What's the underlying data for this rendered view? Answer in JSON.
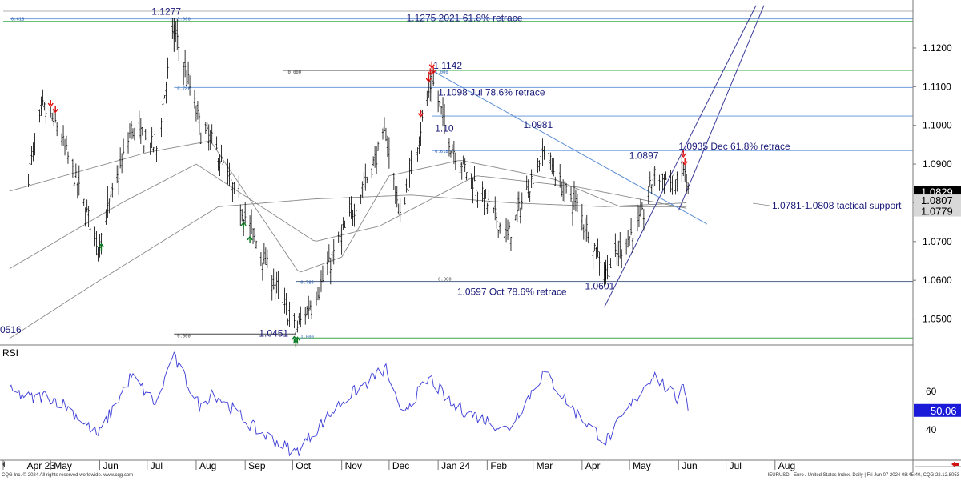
{
  "footer": {
    "copyright": "CQG Inc. © 2024 All rights reserved worldwide. www.cqg.com",
    "info": "IEURUSD - Euro / United States Index, Daily | Fri Jun 07 2024 08:45:40, CQG 22.12.8053"
  },
  "colors": {
    "bars": "#000000",
    "retrace": "#5b8fd6",
    "green_line": "#3ca84a",
    "channel": "#3a3a9a",
    "trend": "#5b8fd6",
    "ma": "#8a8a8a",
    "rsi": "#3a3ad6",
    "label": "#1a1a7a",
    "down_arrow": "#e01010",
    "up_arrow": "#0a7a20"
  },
  "chart_data": [
    {
      "type": "bar",
      "subtype": "ohlc",
      "name": "price",
      "x_ticks": [
        "Apr 23",
        "May",
        "Jun",
        "Jul",
        "Aug",
        "Sep",
        "Oct",
        "Nov",
        "Dec",
        "Jan 24",
        "Feb",
        "Mar",
        "Apr",
        "May",
        "Jun",
        "Jul",
        "Aug"
      ],
      "y_ticks": [
        1.05,
        1.06,
        1.07,
        1.08,
        1.09,
        1.1,
        1.11,
        1.12
      ],
      "y_tick_labels": [
        "1.0500",
        "1.0600",
        "1.0700",
        "1.0800",
        "1.0900",
        "1.1000",
        "1.1100",
        "1.1200"
      ],
      "ylim": [
        1.0435,
        1.1295
      ],
      "right_axis_tags": [
        {
          "value": 1.0829,
          "label": "1.0829",
          "style": "dark"
        },
        {
          "value": 1.0807,
          "label": "1.0807",
          "style": "light"
        },
        {
          "value": 1.0779,
          "label": "1.0779",
          "style": "light"
        }
      ],
      "left_edge_label": "0516",
      "extremes": [
        {
          "label": "1.1277",
          "date": "2023-07-18",
          "value": 1.1277
        },
        {
          "label": "1.1142",
          "date": "2023-12-28",
          "value": 1.1142
        },
        {
          "label": "1.0981",
          "date": "2024-03-08",
          "value": 1.0981
        },
        {
          "label": "1.0897",
          "date": "2024-05-16",
          "value": 1.0897
        },
        {
          "label": "1.10",
          "date": "2023-12-29",
          "value": 1.1
        },
        {
          "label": "1.0601",
          "date": "2024-04-16",
          "value": 1.0601
        },
        {
          "label": "1.0451",
          "date": "2023-10-03",
          "value": 1.0451
        }
      ],
      "levels": [
        {
          "value": 1.1275,
          "label": "1.1275 2021 61.8% retrace",
          "color": "retrace"
        },
        {
          "value": 1.1142,
          "label": "",
          "color": "green_line"
        },
        {
          "value": 1.1098,
          "label": "1.1098 Jul 78.6% retrace",
          "color": "retrace"
        },
        {
          "value": 1.1024,
          "label": "",
          "color": "retrace"
        },
        {
          "value": 1.0935,
          "label": "1.0935 Dec 61.8% retrace",
          "color": "retrace"
        },
        {
          "value": 1.0597,
          "label": "1.0597 Oct 78.6% retrace",
          "color": "retrace"
        },
        {
          "value": 1.0451,
          "label": "",
          "color": "green_line"
        }
      ],
      "annotations": [
        {
          "label": "1.0781-1.0808 tactical support"
        }
      ],
      "small_level_labels": [
        "0.618",
        "1.000",
        "0.000",
        "1.000",
        "0.786",
        "0.618",
        "0.786",
        "0.000",
        "0.000",
        "1.000"
      ],
      "key_points": [
        {
          "date": "2023-04-17",
          "value": 1.087
        },
        {
          "date": "2023-04-26",
          "value": 1.1045
        },
        {
          "date": "2023-05-05",
          "value": 1.1
        },
        {
          "date": "2023-05-31",
          "value": 1.069
        },
        {
          "date": "2023-06-21",
          "value": 1.099
        },
        {
          "date": "2023-07-07",
          "value": 1.094
        },
        {
          "date": "2023-07-18",
          "value": 1.125
        },
        {
          "date": "2023-08-04",
          "value": 1.099
        },
        {
          "date": "2023-08-11",
          "value": 1.096
        },
        {
          "date": "2023-09-08",
          "value": 1.07
        },
        {
          "date": "2023-10-03",
          "value": 1.047
        },
        {
          "date": "2023-10-20",
          "value": 1.06
        },
        {
          "date": "2023-11-03",
          "value": 1.073
        },
        {
          "date": "2023-11-29",
          "value": 1.098
        },
        {
          "date": "2023-12-08",
          "value": 1.076
        },
        {
          "date": "2023-12-28",
          "value": 1.112
        },
        {
          "date": "2024-01-09",
          "value": 1.095
        },
        {
          "date": "2024-02-14",
          "value": 1.071
        },
        {
          "date": "2024-03-08",
          "value": 1.094
        },
        {
          "date": "2024-03-19",
          "value": 1.084
        },
        {
          "date": "2024-03-28",
          "value": 1.08
        },
        {
          "date": "2024-04-16",
          "value": 1.062
        },
        {
          "date": "2024-05-10",
          "value": 1.077
        },
        {
          "date": "2024-05-16",
          "value": 1.087
        },
        {
          "date": "2024-05-31",
          "value": 1.085
        },
        {
          "date": "2024-06-04",
          "value": 1.089
        },
        {
          "date": "2024-06-07",
          "value": 1.0829
        }
      ],
      "moving_averages": [
        {
          "points": [
            {
              "date": "2023-04-05",
              "value": 1.063
            },
            {
              "date": "2023-06-15",
              "value": 1.08
            },
            {
              "date": "2023-08-01",
              "value": 1.09
            },
            {
              "date": "2023-10-15",
              "value": 1.07
            },
            {
              "date": "2023-11-25",
              "value": 1.074
            },
            {
              "date": "2024-01-25",
              "value": 1.087
            },
            {
              "date": "2024-03-30",
              "value": 1.084
            },
            {
              "date": "2024-06-07",
              "value": 1.0785
            }
          ]
        },
        {
          "points": [
            {
              "date": "2023-04-05",
              "value": 1.045
            },
            {
              "date": "2023-06-01",
              "value": 1.06
            },
            {
              "date": "2023-08-15",
              "value": 1.079
            },
            {
              "date": "2023-10-15",
              "value": 1.081
            },
            {
              "date": "2023-12-15",
              "value": 1.082
            },
            {
              "date": "2024-02-15",
              "value": 1.08
            },
            {
              "date": "2024-04-15",
              "value": 1.079
            },
            {
              "date": "2024-06-07",
              "value": 1.08
            }
          ]
        },
        {
          "points": [
            {
              "date": "2023-04-05",
              "value": 1.083
            },
            {
              "date": "2023-07-01",
              "value": 1.093
            },
            {
              "date": "2023-08-10",
              "value": 1.096
            },
            {
              "date": "2023-10-05",
              "value": 1.062
            },
            {
              "date": "2023-11-01",
              "value": 1.066
            },
            {
              "date": "2023-12-01",
              "value": 1.087
            },
            {
              "date": "2024-01-15",
              "value": 1.091
            },
            {
              "date": "2024-03-15",
              "value": 1.086
            },
            {
              "date": "2024-04-25",
              "value": 1.079
            },
            {
              "date": "2024-06-07",
              "value": 1.079
            }
          ]
        }
      ],
      "trendlines": [
        {
          "from": {
            "date": "2023-12-28",
            "value": 1.1142
          },
          "to": {
            "date": "2024-06-19",
            "value": 1.0745
          }
        },
        {
          "from": {
            "date": "2024-04-15",
            "value": 1.053
          },
          "to": {
            "date": "2024-07-20",
            "value": 1.131
          }
        },
        {
          "from": {
            "date": "2024-06-01",
            "value": 1.078
          },
          "to": {
            "date": "2024-07-25",
            "value": 1.131
          }
        }
      ],
      "signal_arrows": [
        {
          "date": "2023-05-01",
          "dir": "down"
        },
        {
          "date": "2023-05-04",
          "dir": "down"
        },
        {
          "date": "2023-06-02",
          "dir": "up"
        },
        {
          "date": "2023-08-31",
          "dir": "up"
        },
        {
          "date": "2023-09-04",
          "dir": "up"
        },
        {
          "date": "2023-10-02",
          "dir": "up"
        },
        {
          "date": "2023-10-03",
          "dir": "up"
        },
        {
          "date": "2023-10-04",
          "dir": "up"
        },
        {
          "date": "2023-12-21",
          "dir": "down"
        },
        {
          "date": "2023-12-26",
          "dir": "down"
        },
        {
          "date": "2023-12-27",
          "dir": "down"
        },
        {
          "date": "2023-12-28",
          "dir": "down"
        },
        {
          "date": "2023-12-29",
          "dir": "down"
        },
        {
          "date": "2024-06-04",
          "dir": "down"
        },
        {
          "date": "2024-06-05",
          "dir": "down"
        }
      ]
    },
    {
      "type": "line",
      "name": "RSI",
      "title": "RSI",
      "y_ticks": [
        40,
        60
      ],
      "ylim": [
        25,
        82
      ],
      "last_value_label": "50.06",
      "key_points": [
        {
          "date": "2023-04-05",
          "value": 60
        },
        {
          "date": "2023-04-20",
          "value": 56
        },
        {
          "date": "2023-04-28",
          "value": 58
        },
        {
          "date": "2023-05-10",
          "value": 53
        },
        {
          "date": "2023-05-31",
          "value": 37
        },
        {
          "date": "2023-06-21",
          "value": 68
        },
        {
          "date": "2023-07-07",
          "value": 53
        },
        {
          "date": "2023-07-17",
          "value": 79
        },
        {
          "date": "2023-08-04",
          "value": 51
        },
        {
          "date": "2023-08-11",
          "value": 60
        },
        {
          "date": "2023-09-08",
          "value": 40
        },
        {
          "date": "2023-10-03",
          "value": 28
        },
        {
          "date": "2023-10-20",
          "value": 44
        },
        {
          "date": "2023-11-03",
          "value": 56
        },
        {
          "date": "2023-11-29",
          "value": 72
        },
        {
          "date": "2023-12-08",
          "value": 48
        },
        {
          "date": "2023-12-27",
          "value": 67
        },
        {
          "date": "2024-01-09",
          "value": 53
        },
        {
          "date": "2024-02-14",
          "value": 40
        },
        {
          "date": "2024-03-08",
          "value": 70
        },
        {
          "date": "2024-03-28",
          "value": 49
        },
        {
          "date": "2024-04-16",
          "value": 34
        },
        {
          "date": "2024-05-16",
          "value": 69
        },
        {
          "date": "2024-05-31",
          "value": 56
        },
        {
          "date": "2024-06-04",
          "value": 66
        },
        {
          "date": "2024-06-07",
          "value": 50.06
        }
      ]
    }
  ]
}
